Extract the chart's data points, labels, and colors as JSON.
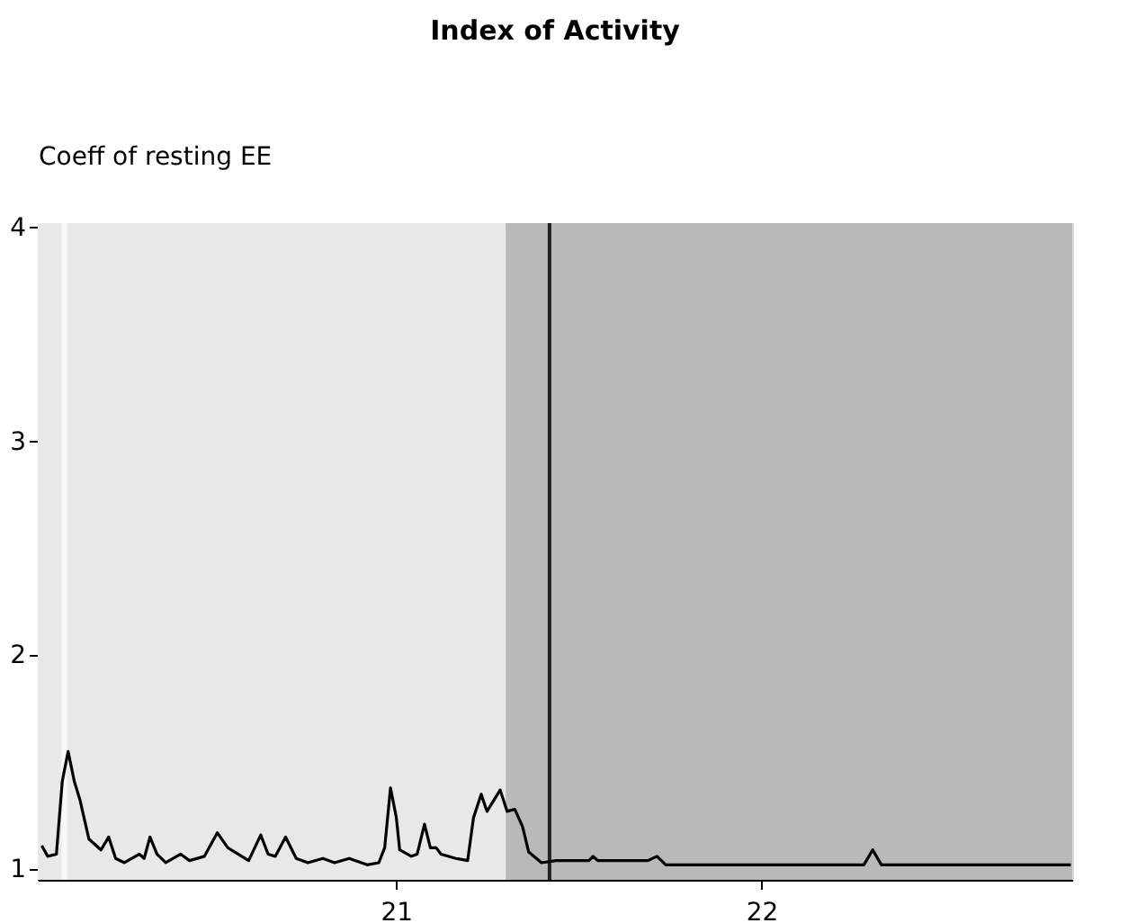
{
  "chart_data": {
    "type": "line",
    "title": "Index of Activity",
    "ylabel": "Coeff of resting EE",
    "x": [
      20.031,
      20.047,
      20.071,
      20.087,
      20.103,
      20.12,
      20.136,
      20.16,
      20.193,
      20.214,
      20.233,
      20.257,
      20.298,
      20.311,
      20.327,
      20.346,
      20.37,
      20.411,
      20.435,
      20.476,
      20.511,
      20.54,
      20.597,
      20.63,
      20.65,
      20.67,
      20.698,
      20.727,
      20.759,
      20.8,
      20.832,
      20.872,
      20.921,
      20.953,
      20.969,
      20.985,
      21.001,
      21.01,
      21.042,
      21.058,
      21.078,
      21.094,
      21.11,
      21.123,
      21.164,
      21.196,
      21.212,
      21.233,
      21.249,
      21.285,
      21.304,
      21.325,
      21.346,
      21.363,
      21.398,
      21.438,
      21.528,
      21.539,
      21.552,
      21.689,
      21.714,
      21.738,
      22.28,
      22.304,
      22.328,
      22.846
    ],
    "series": [
      {
        "color": "#000000",
        "values": [
          1.11,
          1.06,
          1.07,
          1.41,
          1.55,
          1.41,
          1.32,
          1.14,
          1.09,
          1.15,
          1.05,
          1.03,
          1.07,
          1.05,
          1.15,
          1.07,
          1.03,
          1.07,
          1.04,
          1.06,
          1.17,
          1.1,
          1.04,
          1.16,
          1.07,
          1.06,
          1.15,
          1.05,
          1.03,
          1.05,
          1.03,
          1.05,
          1.02,
          1.03,
          1.1,
          1.38,
          1.24,
          1.09,
          1.06,
          1.07,
          1.21,
          1.1,
          1.1,
          1.07,
          1.05,
          1.04,
          1.24,
          1.35,
          1.27,
          1.37,
          1.27,
          1.28,
          1.2,
          1.08,
          1.03,
          1.04,
          1.04,
          1.06,
          1.04,
          1.04,
          1.06,
          1.02,
          1.02,
          1.09,
          1.02,
          1.02
        ]
      }
    ],
    "xlim": [
      20.02,
      22.85
    ],
    "xticks": [
      21,
      22
    ],
    "ylim": [
      0.95,
      4.02
    ],
    "yticks": [
      1,
      2,
      3,
      4
    ],
    "marker": "none",
    "line_style": "solid",
    "bands": [
      {
        "axis": "x",
        "from": 20.02,
        "to": 21.3,
        "color": "#e8e8e8"
      },
      {
        "axis": "x",
        "from": 20.085,
        "to": 20.1,
        "color": "#f8f8f8"
      },
      {
        "axis": "x",
        "from": 21.3,
        "to": 22.85,
        "color": "#b9b9b9"
      }
    ],
    "ref_lines": [
      {
        "axis": "x",
        "value": 21.42,
        "color": "#222222",
        "line_style": "solid"
      }
    ]
  }
}
